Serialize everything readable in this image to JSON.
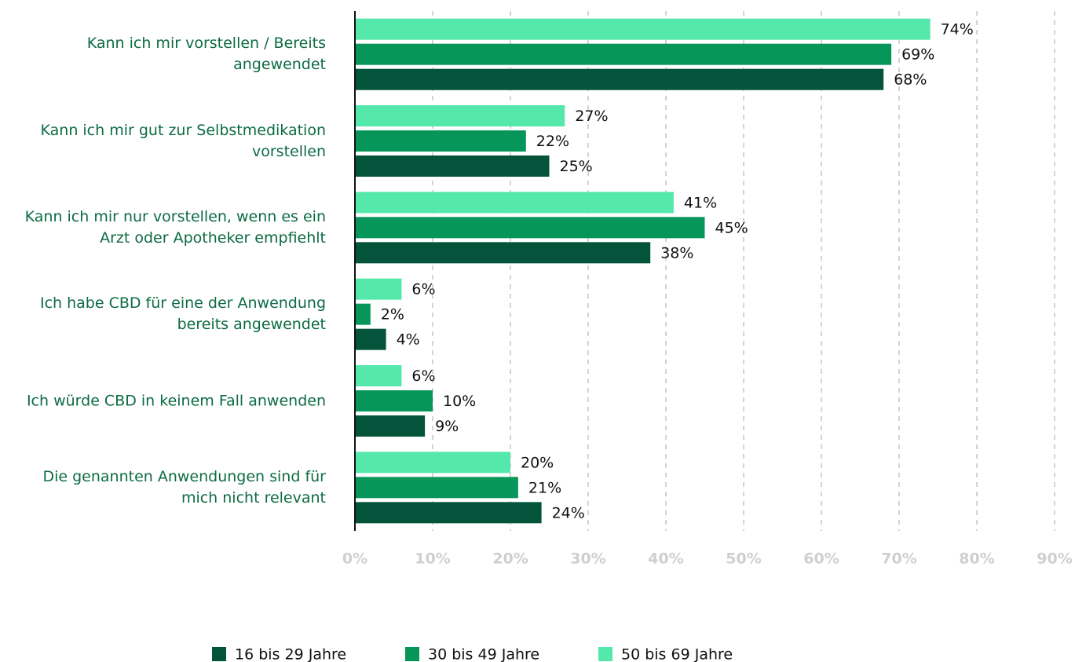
{
  "chart_data": {
    "type": "hbar",
    "categories": [
      "Kann ich mir vorstellen / Bereits\nangewendet",
      "Kann ich mir gut zur Selbstmedikation\nvorstellen",
      "Kann ich mir nur vorstellen, wenn es ein\nArzt oder Apotheker empfiehlt",
      "Ich habe CBD für eine der Anwendung\nbereits angewendet",
      "Ich würde CBD in keinem Fall anwenden",
      "Die genannten Anwendungen sind für\nmich nicht relevant"
    ],
    "series": [
      {
        "name": "16 bis 29 Jahre",
        "color": "#03543a",
        "values": [
          68,
          25,
          38,
          4,
          9,
          24
        ],
        "value_labels": [
          "68%",
          "25%",
          "38%",
          "4%",
          "9%",
          "24%"
        ]
      },
      {
        "name": "30 bis 49 Jahre",
        "color": "#07965a",
        "values": [
          69,
          22,
          45,
          2,
          10,
          21
        ],
        "value_labels": [
          "69%",
          "22%",
          "45%",
          "2%",
          "10%",
          "21%"
        ]
      },
      {
        "name": "50 bis 69 Jahre",
        "color": "#55e8ab",
        "values": [
          74,
          27,
          41,
          6,
          6,
          20
        ],
        "value_labels": [
          "74%",
          "27%",
          "41%",
          "6%",
          "6%",
          "20%"
        ]
      }
    ],
    "xlim": [
      0,
      90
    ],
    "xticks": [
      {
        "value": 0,
        "label": "0%"
      },
      {
        "value": 10,
        "label": "10%"
      },
      {
        "value": 20,
        "label": "20%"
      },
      {
        "value": 30,
        "label": "30%"
      },
      {
        "value": 40,
        "label": "40%"
      },
      {
        "value": 50,
        "label": "50%"
      },
      {
        "value": 60,
        "label": "60%"
      },
      {
        "value": 70,
        "label": "70%"
      },
      {
        "value": 80,
        "label": "80%"
      },
      {
        "value": 90,
        "label": "90%"
      }
    ],
    "grid": true
  }
}
